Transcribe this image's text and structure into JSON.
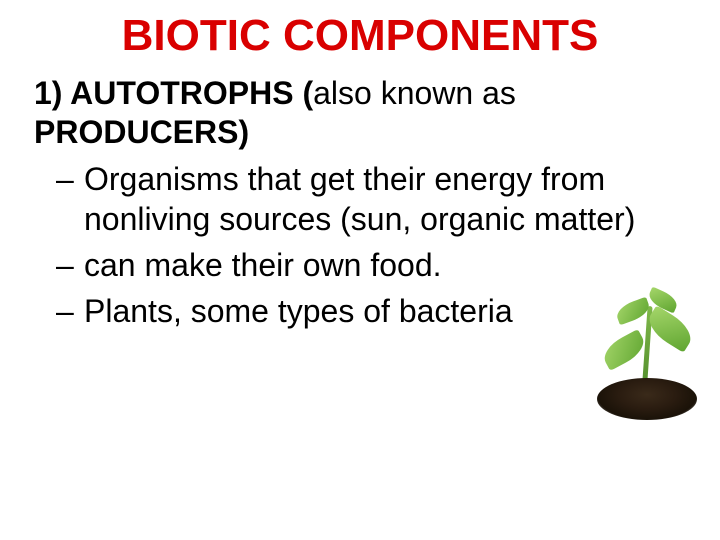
{
  "title": {
    "text": "BIOTIC COMPONENTS",
    "color": "#d90000",
    "fontsize": 44,
    "weight": "bold"
  },
  "heading": {
    "prefix": "1) AUTOTROPHS (",
    "middle": "also known as",
    "suffix": " PRODUCERS)",
    "color": "#000000",
    "fontsize": 32
  },
  "bullets": {
    "color": "#000000",
    "fontsize": 32,
    "dash_color": "#000000",
    "items": [
      "Organisms that get their energy from nonliving sources (sun, organic matter)",
      "can make their own food.",
      "Plants, some types of bacteria"
    ]
  },
  "illustration": {
    "name": "seedling-plant",
    "leaf_color_light": "#a5d66a",
    "leaf_color_dark": "#5fa530",
    "stem_color": "#4e8a2a",
    "soil_color": "#2a1c10"
  },
  "background_color": "#ffffff"
}
